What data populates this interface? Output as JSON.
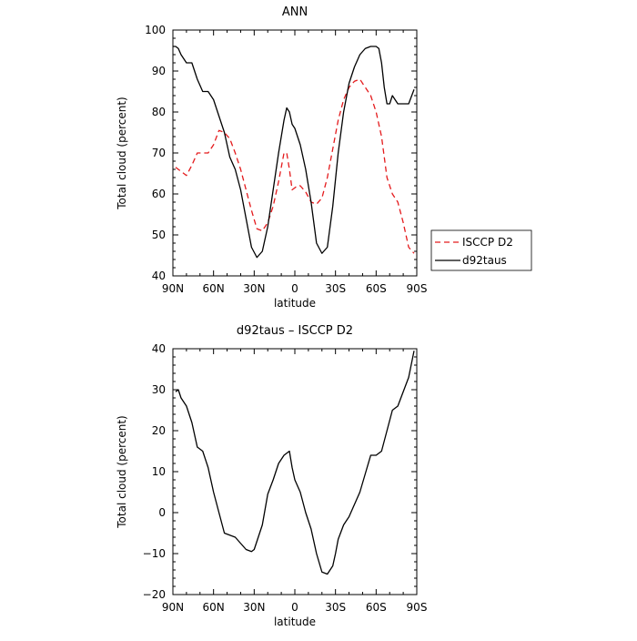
{
  "chart_data": [
    {
      "type": "line",
      "title": "ANN",
      "xlabel": "latitude",
      "ylabel": "Total cloud (percent)",
      "xlim": [
        90,
        -90
      ],
      "ylim": [
        40,
        100
      ],
      "x_tick_values": [
        90,
        60,
        30,
        0,
        -30,
        -60,
        -90
      ],
      "x_tick_labels": [
        "90N",
        "60N",
        "30N",
        "0",
        "30S",
        "60S",
        "90S"
      ],
      "y_tick_values": [
        40,
        50,
        60,
        70,
        80,
        90,
        100
      ],
      "y_tick_labels": [
        "40",
        "50",
        "60",
        "70",
        "80",
        "90",
        "100"
      ],
      "grid": false,
      "legend": {
        "placement": "right-outside",
        "entries": [
          "ISCCP D2",
          "d92taus"
        ]
      },
      "series": [
        {
          "name": "ISCCP D2",
          "color": "#e41a1c",
          "dash": "dashed",
          "x": [
            88,
            84,
            80,
            76,
            72,
            68,
            64,
            60,
            56,
            52,
            48,
            44,
            40,
            36,
            32,
            28,
            24,
            20,
            16,
            12,
            8,
            6,
            4,
            2,
            0,
            -2,
            -4,
            -8,
            -12,
            -16,
            -20,
            -24,
            -28,
            -32,
            -36,
            -40,
            -44,
            -48,
            -52,
            -56,
            -60,
            -64,
            -68,
            -72,
            -76,
            -80,
            -84,
            -88
          ],
          "y": [
            66.5,
            65.5,
            64.5,
            67,
            70,
            70,
            70,
            72,
            75.5,
            75,
            73.5,
            70,
            66,
            61,
            56,
            51.5,
            51,
            53,
            57,
            63,
            70,
            70,
            66,
            61,
            61.5,
            62,
            62,
            60.5,
            58,
            57.5,
            59,
            64,
            71,
            78,
            83,
            86,
            87.5,
            88,
            86,
            84,
            80,
            74,
            64,
            60,
            58,
            53,
            47,
            45.5
          ]
        },
        {
          "name": "d92taus",
          "color": "#000000",
          "dash": "solid",
          "x": [
            90,
            88,
            86,
            84,
            80,
            76,
            72,
            68,
            64,
            60,
            56,
            52,
            48,
            44,
            40,
            36,
            32,
            28,
            24,
            20,
            16,
            12,
            8,
            6,
            4,
            2,
            0,
            -4,
            -8,
            -12,
            -16,
            -20,
            -24,
            -28,
            -32,
            -36,
            -40,
            -44,
            -48,
            -52,
            -56,
            -60,
            -62,
            -64,
            -66,
            -68,
            -70,
            -72,
            -76,
            -80,
            -84,
            -88
          ],
          "y": [
            96,
            96,
            95.5,
            94,
            92,
            92,
            88,
            85,
            85,
            83,
            79,
            75,
            69,
            66,
            61,
            54,
            47,
            44.5,
            46,
            52,
            61,
            70,
            78,
            81,
            80,
            77,
            76,
            72,
            66,
            58,
            48,
            45.5,
            47,
            57,
            70,
            80,
            87,
            91,
            94,
            95.5,
            96,
            96,
            95.5,
            92,
            86,
            82,
            82,
            84,
            82,
            82,
            82,
            85.5
          ]
        }
      ]
    },
    {
      "type": "line",
      "title": "d92taus – ISCCP D2",
      "xlabel": "latitude",
      "ylabel": "Total cloud (percent)",
      "xlim": [
        90,
        -90
      ],
      "ylim": [
        -20,
        40
      ],
      "x_tick_values": [
        90,
        60,
        30,
        0,
        -30,
        -60,
        -90
      ],
      "x_tick_labels": [
        "90N",
        "60N",
        "30N",
        "0",
        "30S",
        "60S",
        "90S"
      ],
      "y_tick_values": [
        -20,
        -10,
        0,
        10,
        20,
        30,
        40
      ],
      "y_tick_labels": [
        "−20",
        "−10",
        "0",
        "10",
        "20",
        "30",
        "40"
      ],
      "grid": false,
      "series": [
        {
          "color": "#000000",
          "dash": "solid",
          "x": [
            88,
            86,
            84,
            80,
            76,
            72,
            68,
            64,
            60,
            56,
            52,
            48,
            44,
            40,
            36,
            32,
            30,
            28,
            24,
            20,
            16,
            12,
            8,
            4,
            2,
            0,
            -4,
            -8,
            -12,
            -16,
            -20,
            -24,
            -28,
            -30,
            -32,
            -36,
            -40,
            -44,
            -48,
            -52,
            -56,
            -60,
            -64,
            -68,
            -72,
            -76,
            -80,
            -84,
            -88
          ],
          "y": [
            29.5,
            30,
            28,
            26,
            22,
            16,
            15,
            11,
            5,
            0,
            -5,
            -5.5,
            -6,
            -7.5,
            -9,
            -9.5,
            -9,
            -7,
            -3,
            4.5,
            8,
            12,
            14,
            15,
            11,
            8,
            5,
            0,
            -4,
            -10,
            -14.5,
            -15,
            -13,
            -10,
            -6.5,
            -3,
            -1,
            2,
            5,
            9.5,
            14,
            14,
            15,
            20,
            25,
            26,
            29.5,
            33,
            39.5
          ]
        }
      ]
    }
  ]
}
